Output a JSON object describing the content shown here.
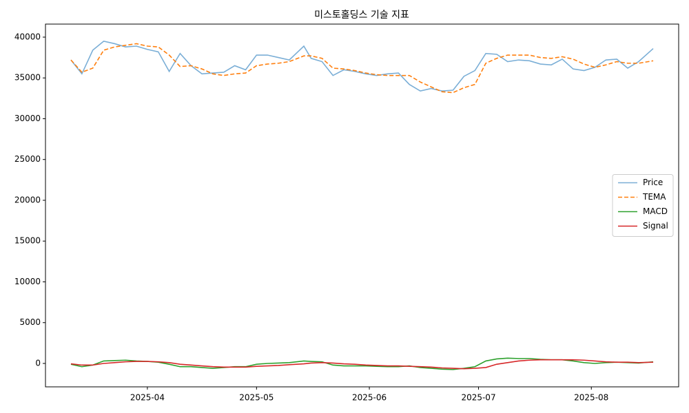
{
  "chart_data": {
    "type": "line",
    "title": "미스토홀딩스 기술 지표",
    "x": [
      "2025-03-11",
      "2025-03-14",
      "2025-03-17",
      "2025-03-20",
      "2025-03-23",
      "2025-03-26",
      "2025-03-29",
      "2025-04-01",
      "2025-04-04",
      "2025-04-07",
      "2025-04-10",
      "2025-04-13",
      "2025-04-16",
      "2025-04-19",
      "2025-04-22",
      "2025-04-25",
      "2025-04-28",
      "2025-05-01",
      "2025-05-04",
      "2025-05-07",
      "2025-05-10",
      "2025-05-14",
      "2025-05-16",
      "2025-05-19",
      "2025-05-22",
      "2025-05-25",
      "2025-05-28",
      "2025-05-31",
      "2025-06-03",
      "2025-06-06",
      "2025-06-09",
      "2025-06-12",
      "2025-06-15",
      "2025-06-18",
      "2025-06-21",
      "2025-06-24",
      "2025-06-27",
      "2025-06-30",
      "2025-07-03",
      "2025-07-06",
      "2025-07-09",
      "2025-07-12",
      "2025-07-15",
      "2025-07-18",
      "2025-07-21",
      "2025-07-24",
      "2025-07-27",
      "2025-07-30",
      "2025-08-02",
      "2025-08-05",
      "2025-08-08",
      "2025-08-11",
      "2025-08-14",
      "2025-08-18"
    ],
    "series": [
      {
        "name": "Price",
        "color": "#7aaed6",
        "linestyle": "solid",
        "values": [
          37200,
          35500,
          38400,
          39500,
          39200,
          38800,
          38900,
          38500,
          38200,
          35800,
          38000,
          36500,
          35500,
          35600,
          35700,
          36500,
          36000,
          37800,
          37800,
          37500,
          37200,
          38900,
          37400,
          37000,
          35300,
          36000,
          35800,
          35500,
          35300,
          35500,
          35600,
          34200,
          33400,
          33700,
          33400,
          33500,
          35200,
          35900,
          38000,
          37900,
          37000,
          37200,
          37100,
          36700,
          36600,
          37300,
          36100,
          35900,
          36300,
          37200,
          37300,
          36200,
          37000,
          38600
        ]
      },
      {
        "name": "TEMA",
        "color": "#ff7f0e",
        "linestyle": "dashed",
        "values": [
          37200,
          35700,
          36200,
          38400,
          38800,
          39000,
          39200,
          38900,
          38800,
          37800,
          36400,
          36500,
          36100,
          35500,
          35300,
          35500,
          35600,
          36500,
          36700,
          36800,
          37000,
          37700,
          37700,
          37400,
          36200,
          36100,
          35900,
          35600,
          35400,
          35300,
          35300,
          35300,
          34500,
          33900,
          33300,
          33200,
          33800,
          34200,
          36800,
          37400,
          37800,
          37800,
          37800,
          37500,
          37400,
          37600,
          37300,
          36700,
          36300,
          36600,
          37000,
          36800,
          36800,
          37100
        ]
      },
      {
        "name": "MACD",
        "color": "#2ca02c",
        "linestyle": "solid",
        "values": [
          -100,
          -400,
          -200,
          300,
          350,
          400,
          300,
          250,
          150,
          -100,
          -400,
          -400,
          -500,
          -600,
          -500,
          -400,
          -400,
          -100,
          0,
          50,
          100,
          300,
          250,
          200,
          -200,
          -300,
          -300,
          -300,
          -350,
          -400,
          -400,
          -300,
          -500,
          -600,
          -700,
          -750,
          -600,
          -400,
          300,
          550,
          650,
          600,
          600,
          500,
          450,
          450,
          300,
          100,
          0,
          100,
          150,
          100,
          50,
          200
        ]
      },
      {
        "name": "Signal",
        "color": "#d62728",
        "linestyle": "solid",
        "values": [
          -50,
          -200,
          -200,
          0,
          100,
          200,
          250,
          250,
          200,
          100,
          -100,
          -200,
          -300,
          -400,
          -450,
          -450,
          -450,
          -350,
          -300,
          -250,
          -150,
          -50,
          50,
          100,
          50,
          -50,
          -100,
          -200,
          -250,
          -300,
          -300,
          -350,
          -400,
          -450,
          -550,
          -600,
          -650,
          -600,
          -500,
          -100,
          100,
          300,
          400,
          450,
          450,
          450,
          450,
          400,
          300,
          200,
          150,
          150,
          100,
          150
        ]
      }
    ],
    "xlim": [
      "2025-03-04",
      "2025-08-25"
    ],
    "xticks": [
      {
        "value": "2025-04-01",
        "label": "2025-04"
      },
      {
        "value": "2025-05-01",
        "label": "2025-05"
      },
      {
        "value": "2025-06-01",
        "label": "2025-06"
      },
      {
        "value": "2025-07-01",
        "label": "2025-07"
      },
      {
        "value": "2025-08-01",
        "label": "2025-08"
      }
    ],
    "ylim": [
      -2870,
      41600
    ],
    "yticks": [
      0,
      5000,
      10000,
      15000,
      20000,
      25000,
      30000,
      35000,
      40000
    ],
    "grid": false,
    "legend": "right"
  }
}
